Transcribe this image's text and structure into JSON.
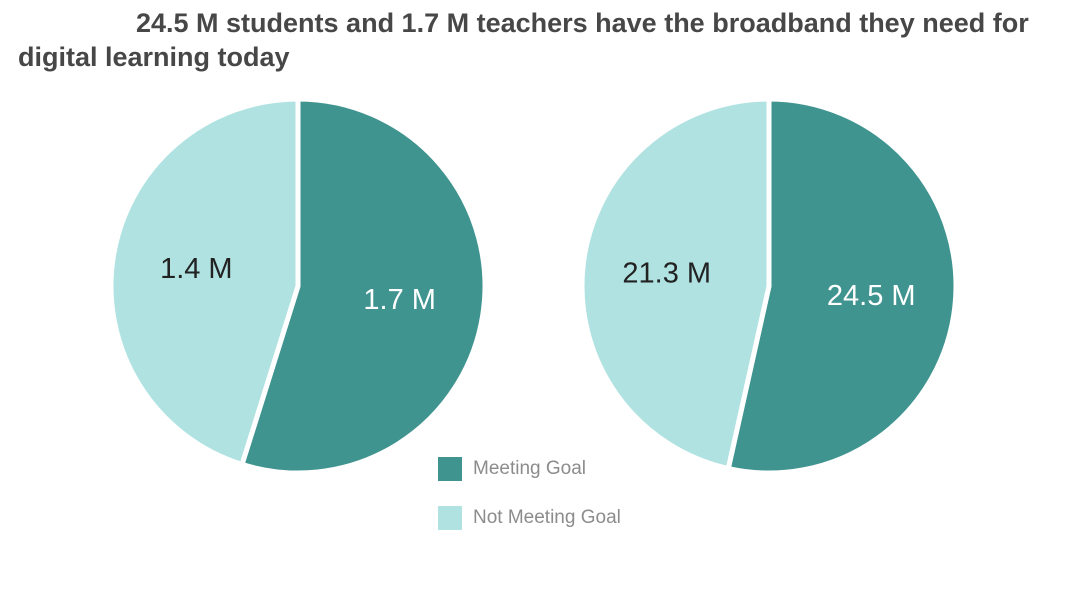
{
  "title": "24.5 M students and 1.7 M teachers have the broadband they need for digital learning today",
  "colors": {
    "meeting": "#409490",
    "not_meeting": "#b0e2e2"
  },
  "legend": [
    {
      "label": "Meeting Goal",
      "color": "#409490"
    },
    {
      "label": "Not Meeting Goal",
      "color": "#b0e2e2"
    }
  ],
  "chart_data": [
    {
      "type": "pie",
      "categories": [
        "Meeting Goal",
        "Not Meeting Goal"
      ],
      "values": [
        1.7,
        1.4
      ],
      "labels": [
        "1.7 M",
        "1.4 M"
      ],
      "legend": "bottom-center"
    },
    {
      "type": "pie",
      "categories": [
        "Meeting Goal",
        "Not Meeting Goal"
      ],
      "values": [
        24.5,
        21.3
      ],
      "labels": [
        "24.5 M",
        "21.3 M"
      ],
      "legend": "bottom-center"
    }
  ]
}
